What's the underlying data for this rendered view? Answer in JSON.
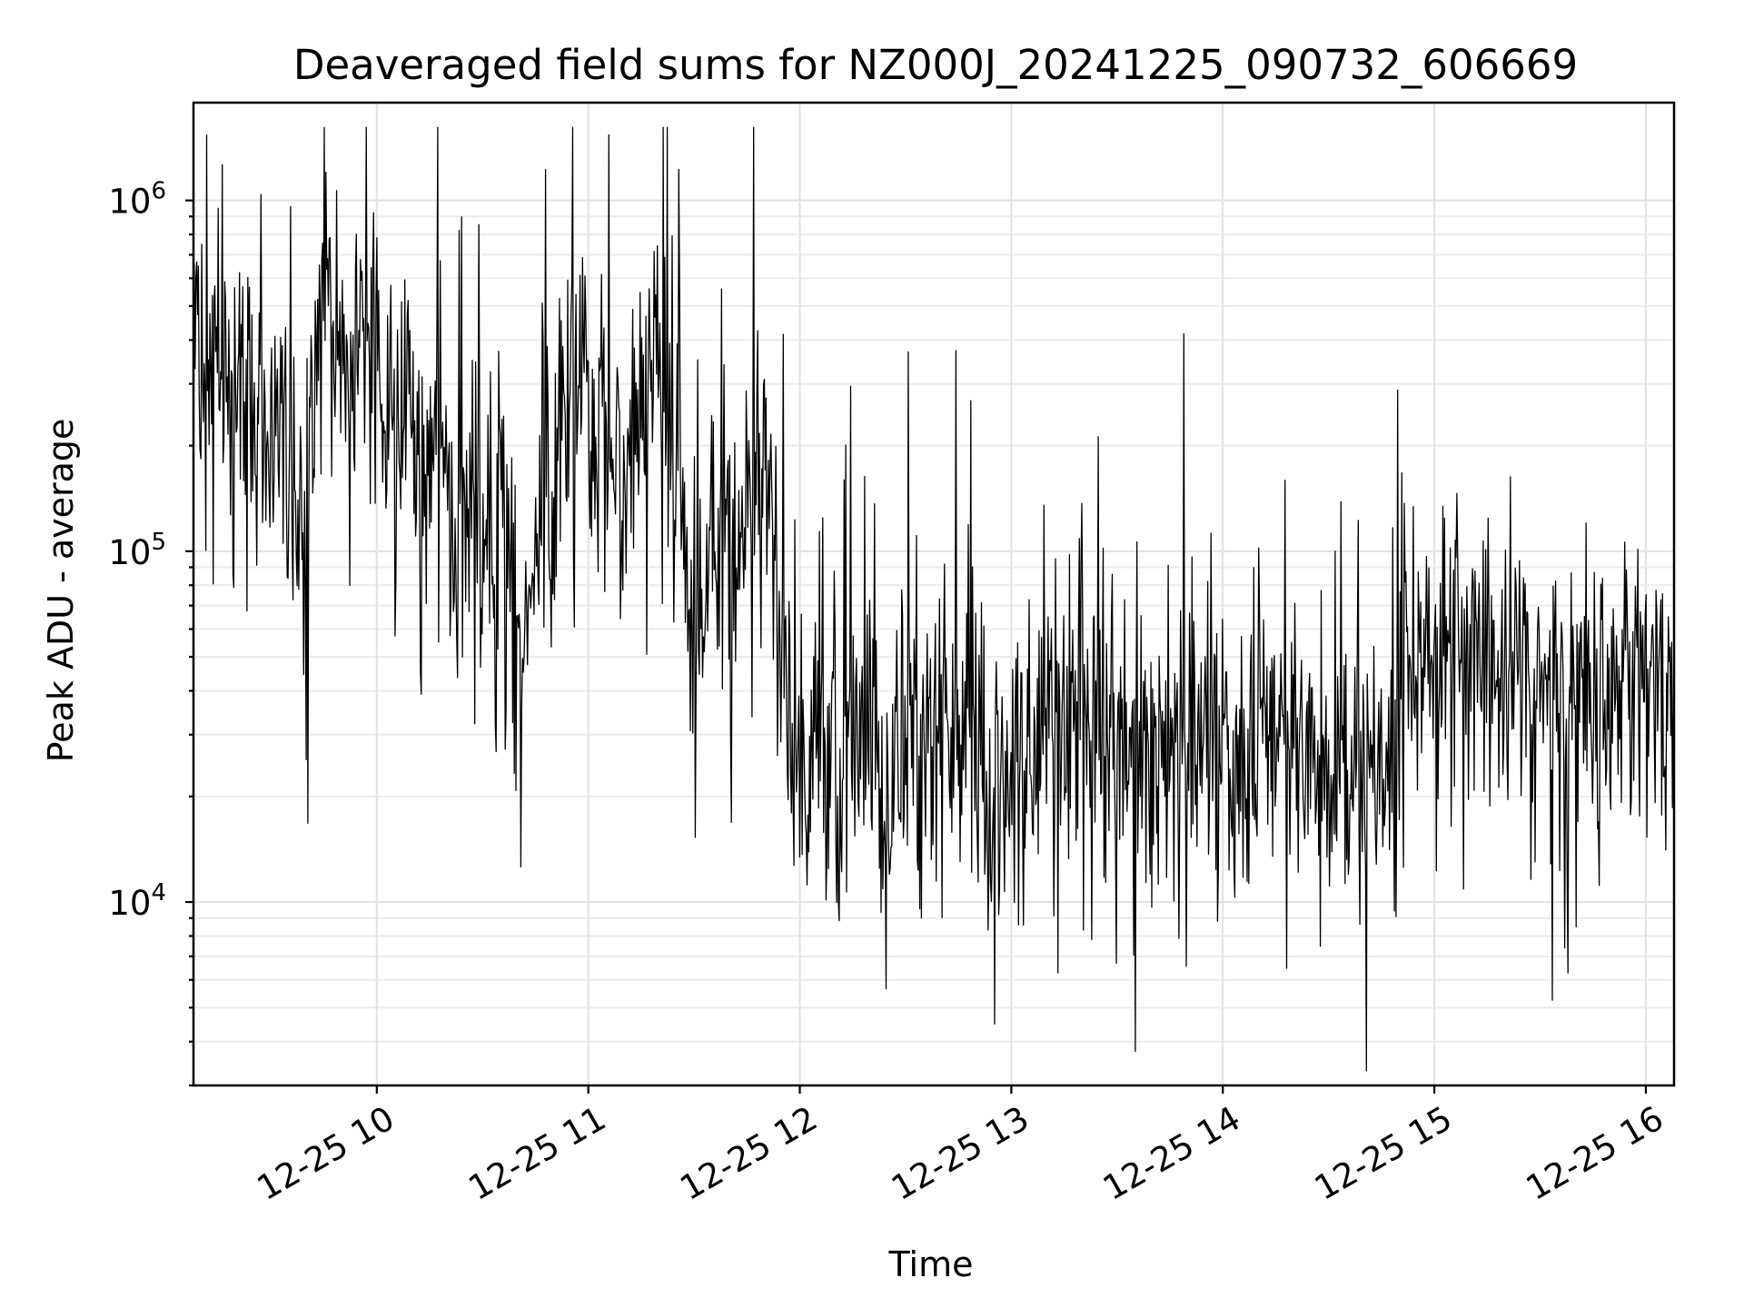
{
  "chart_data": {
    "type": "line",
    "title": "Deaveraged field sums for NZ000J_20241225_090732_606669",
    "xlabel": "Time",
    "ylabel": "Peak ADU - average",
    "x_scale": "time",
    "y_scale": "log",
    "xlim": [
      "12-25 09:08",
      "12-25 16:08"
    ],
    "ylim": [
      3000,
      1900000
    ],
    "x_tick_labels": [
      "12-25 10",
      "12-25 11",
      "12-25 12",
      "12-25 13",
      "12-25 14",
      "12-25 15",
      "12-25 16"
    ],
    "y_tick_labels": [
      {
        "value": 10000,
        "base": "10",
        "exp": "4"
      },
      {
        "value": 100000,
        "base": "10",
        "exp": "5"
      },
      {
        "value": 1000000,
        "base": "10",
        "exp": "6"
      }
    ],
    "grid": true,
    "legend": "none",
    "series_color": "#000000",
    "series": [
      {
        "x": [
          "09:08",
          "09:15",
          "09:20",
          "09:25",
          "09:30",
          "09:35",
          "09:40",
          "09:45",
          "09:50",
          "09:55",
          "10:00",
          "10:05",
          "10:10",
          "10:15",
          "10:20",
          "10:25",
          "10:30",
          "10:35",
          "10:40",
          "10:45",
          "10:50",
          "10:55",
          "11:00",
          "11:05",
          "11:10",
          "11:15",
          "11:20",
          "11:25",
          "11:30",
          "11:35",
          "11:40",
          "11:45",
          "11:50",
          "11:55",
          "12:00",
          "12:05",
          "12:10",
          "12:15",
          "12:20",
          "12:25",
          "12:30",
          "12:35",
          "12:40",
          "12:45",
          "12:50",
          "12:55",
          "13:00",
          "13:05",
          "13:10",
          "13:15",
          "13:20",
          "13:25",
          "13:30",
          "13:35",
          "13:40",
          "13:45",
          "13:50",
          "13:55",
          "14:00",
          "14:05",
          "14:10",
          "14:15",
          "14:20",
          "14:25",
          "14:30",
          "14:35",
          "14:40",
          "14:45",
          "14:50",
          "14:55",
          "15:00",
          "15:05",
          "15:10",
          "15:15",
          "15:20",
          "15:25",
          "15:30",
          "15:35",
          "15:40",
          "15:45",
          "15:50",
          "15:55",
          "16:00",
          "16:05",
          "16:08"
        ],
        "values": [
          400000,
          350000,
          300000,
          260000,
          250000,
          150000,
          120000,
          600000,
          350000,
          450000,
          300000,
          250000,
          220000,
          200000,
          150000,
          120000,
          110000,
          130000,
          60000,
          90000,
          160000,
          300000,
          250000,
          280000,
          150000,
          250000,
          350000,
          180000,
          70000,
          100000,
          80000,
          150000,
          200000,
          40000,
          25000,
          30000,
          28000,
          30000,
          25000,
          22000,
          30000,
          28000,
          35000,
          25000,
          30000,
          20000,
          22000,
          28000,
          30000,
          25000,
          32000,
          30000,
          28000,
          30000,
          30000,
          28000,
          30000,
          28000,
          30000,
          27000,
          30000,
          28000,
          30000,
          28000,
          25000,
          24000,
          22000,
          25000,
          45000,
          55000,
          50000,
          45000,
          42000,
          40000,
          45000,
          42000,
          38000,
          40000,
          35000,
          40000,
          35000,
          38000,
          40000,
          40000,
          45000
        ]
      }
    ]
  }
}
